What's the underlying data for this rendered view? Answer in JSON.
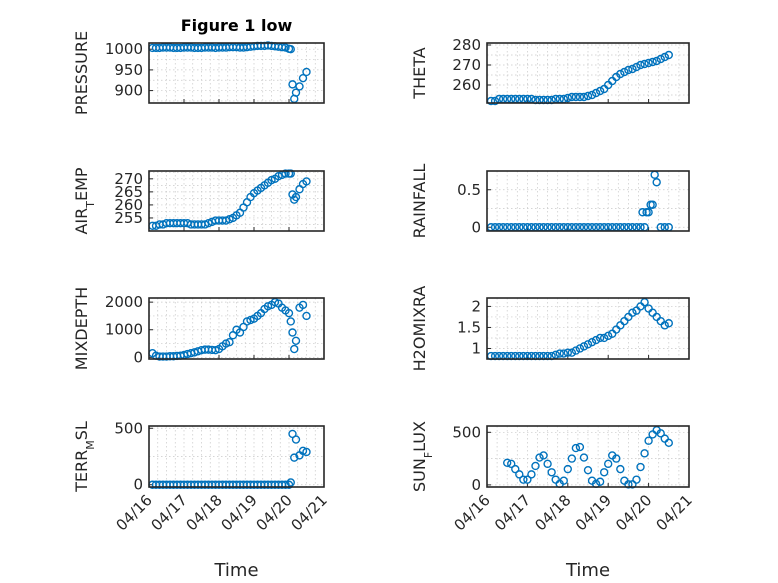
{
  "figure_title": "Figure 1 low",
  "xlabel": "Time",
  "x_tick_labels": [
    "04/16",
    "04/17",
    "04/18",
    "04/19",
    "04/20",
    "04/21"
  ],
  "marker_color": "#0072bd",
  "chart_data": [
    {
      "id": "pressure",
      "type": "scatter",
      "ylabel": "PRESSURE",
      "ylim": [
        870,
        1015
      ],
      "yticks": [
        900,
        950,
        1000
      ],
      "yticklabels": [
        "900",
        "950",
        "1000"
      ],
      "show_xticklabels": false,
      "x": [
        16.1,
        16.2,
        16.3,
        16.4,
        16.5,
        16.6,
        16.7,
        16.8,
        16.9,
        17.0,
        17.1,
        17.2,
        17.3,
        17.4,
        17.5,
        17.6,
        17.7,
        17.8,
        17.9,
        18.0,
        18.1,
        18.2,
        18.3,
        18.4,
        18.5,
        18.6,
        18.7,
        18.8,
        18.9,
        19.0,
        19.1,
        19.2,
        19.3,
        19.4,
        19.5,
        19.6,
        19.7,
        19.8,
        19.9,
        20.0,
        20.05,
        20.1,
        20.15,
        20.2,
        20.3,
        20.4,
        20.5
      ],
      "y": [
        1003,
        1003,
        1003,
        1004,
        1004,
        1004,
        1003,
        1003,
        1003,
        1004,
        1004,
        1004,
        1003,
        1003,
        1003,
        1004,
        1004,
        1004,
        1003,
        1004,
        1004,
        1004,
        1005,
        1005,
        1005,
        1004,
        1004,
        1005,
        1006,
        1007,
        1008,
        1008,
        1008,
        1009,
        1008,
        1007,
        1006,
        1005,
        1004,
        1001,
        1000,
        915,
        880,
        895,
        910,
        930,
        945
      ]
    },
    {
      "id": "theta",
      "type": "scatter",
      "ylabel": "THETA",
      "ylim": [
        251,
        281
      ],
      "yticks": [
        260,
        270,
        280
      ],
      "yticklabels": [
        "260",
        "270",
        "280"
      ],
      "show_xticklabels": false,
      "x": [
        16.1,
        16.2,
        16.3,
        16.4,
        16.5,
        16.6,
        16.7,
        16.8,
        16.9,
        17.0,
        17.1,
        17.2,
        17.3,
        17.4,
        17.5,
        17.6,
        17.7,
        17.8,
        17.9,
        18.0,
        18.1,
        18.2,
        18.3,
        18.4,
        18.5,
        18.6,
        18.7,
        18.8,
        18.9,
        19.0,
        19.1,
        19.2,
        19.3,
        19.4,
        19.5,
        19.6,
        19.7,
        19.8,
        19.9,
        20.0,
        20.1,
        20.2,
        20.3,
        20.4,
        20.5
      ],
      "y": [
        252,
        252,
        253,
        253,
        253,
        253,
        253,
        253,
        253,
        253,
        253,
        252.5,
        252.5,
        252.5,
        252.5,
        252.5,
        253,
        253,
        253,
        253.5,
        254,
        254,
        254,
        254,
        254.5,
        255,
        256,
        257,
        258,
        260,
        262,
        264,
        265.5,
        266.5,
        267.5,
        268,
        269,
        270,
        270.5,
        271,
        271.5,
        272,
        273,
        274,
        275
      ]
    },
    {
      "id": "air_temp",
      "type": "scatter",
      "ylabel": "AIR_TEMP",
      "ylim": [
        250,
        273
      ],
      "yticks": [
        255,
        260,
        265,
        270
      ],
      "yticklabels": [
        "255",
        "260",
        "265",
        "270"
      ],
      "show_xticklabels": false,
      "x": [
        16.1,
        16.2,
        16.3,
        16.4,
        16.5,
        16.6,
        16.7,
        16.8,
        16.9,
        17.0,
        17.1,
        17.2,
        17.3,
        17.4,
        17.5,
        17.6,
        17.7,
        17.8,
        17.9,
        18.0,
        18.1,
        18.2,
        18.3,
        18.4,
        18.5,
        18.6,
        18.7,
        18.8,
        18.9,
        19.0,
        19.1,
        19.2,
        19.3,
        19.4,
        19.5,
        19.6,
        19.7,
        19.8,
        19.9,
        20.0,
        20.05,
        20.1,
        20.15,
        20.2,
        20.3,
        20.4,
        20.5
      ],
      "y": [
        252,
        252,
        252.5,
        252.5,
        253,
        253,
        253,
        253,
        253,
        253,
        253,
        252.5,
        252.5,
        252.5,
        252.5,
        252.5,
        253,
        253.5,
        254,
        254,
        254,
        254,
        254.5,
        255,
        256,
        257,
        259,
        261,
        263,
        264.5,
        265.5,
        266.5,
        267.5,
        268.5,
        269.5,
        270,
        271,
        271.5,
        272,
        272,
        272,
        264,
        262,
        263,
        266,
        268,
        269
      ]
    },
    {
      "id": "rainfall",
      "type": "scatter",
      "ylabel": "RAINFALL",
      "ylim": [
        -0.05,
        0.75
      ],
      "yticks": [
        0,
        0.5
      ],
      "yticklabels": [
        "0",
        "0.5"
      ],
      "show_xticklabels": false,
      "x": [
        16.1,
        16.2,
        16.3,
        16.4,
        16.5,
        16.6,
        16.7,
        16.8,
        16.9,
        17.0,
        17.1,
        17.2,
        17.3,
        17.4,
        17.5,
        17.6,
        17.7,
        17.8,
        17.9,
        18.0,
        18.1,
        18.2,
        18.3,
        18.4,
        18.5,
        18.6,
        18.7,
        18.8,
        18.9,
        19.0,
        19.1,
        19.2,
        19.3,
        19.4,
        19.5,
        19.6,
        19.7,
        19.8,
        19.85,
        19.9,
        19.95,
        20.0,
        20.05,
        20.1,
        20.15,
        20.2,
        20.3,
        20.4,
        20.5
      ],
      "y": [
        0,
        0,
        0,
        0,
        0,
        0,
        0,
        0,
        0,
        0,
        0,
        0,
        0,
        0,
        0,
        0,
        0,
        0,
        0,
        0,
        0,
        0,
        0,
        0,
        0,
        0,
        0,
        0,
        0,
        0,
        0,
        0,
        0,
        0,
        0,
        0,
        0,
        0,
        0.2,
        0,
        0.2,
        0.2,
        0.3,
        0.3,
        0.7,
        0.6,
        0,
        0,
        0
      ]
    },
    {
      "id": "mixdepth",
      "type": "scatter",
      "ylabel": "MIXDEPTH",
      "ylim": [
        -60,
        2150
      ],
      "yticks": [
        0,
        1000,
        2000
      ],
      "yticklabels": [
        "0",
        "1000",
        "2000"
      ],
      "show_xticklabels": false,
      "x": [
        16.1,
        16.2,
        16.3,
        16.4,
        16.5,
        16.6,
        16.7,
        16.8,
        16.9,
        17.0,
        17.1,
        17.2,
        17.3,
        17.4,
        17.5,
        17.6,
        17.7,
        17.8,
        17.9,
        18.0,
        18.1,
        18.2,
        18.3,
        18.4,
        18.5,
        18.6,
        18.7,
        18.8,
        18.9,
        19.0,
        19.1,
        19.2,
        19.3,
        19.4,
        19.5,
        19.6,
        19.7,
        19.8,
        19.9,
        20.0,
        20.05,
        20.1,
        20.15,
        20.2,
        20.3,
        20.4,
        20.5
      ],
      "y": [
        150,
        60,
        30,
        30,
        30,
        40,
        40,
        50,
        60,
        80,
        120,
        150,
        180,
        220,
        260,
        280,
        280,
        270,
        260,
        300,
        400,
        500,
        550,
        800,
        1000,
        900,
        1100,
        1300,
        1350,
        1400,
        1500,
        1600,
        1750,
        1850,
        1900,
        2000,
        1950,
        1800,
        1700,
        1600,
        1300,
        900,
        300,
        600,
        1800,
        1900,
        1500
      ]
    },
    {
      "id": "h2omixra",
      "type": "scatter",
      "ylabel": "H2OMIXRA",
      "ylim": [
        0.75,
        2.2
      ],
      "yticks": [
        1,
        1.5,
        2
      ],
      "yticklabels": [
        "1",
        "1.5",
        "2"
      ],
      "show_xticklabels": false,
      "x": [
        16.1,
        16.2,
        16.3,
        16.4,
        16.5,
        16.6,
        16.7,
        16.8,
        16.9,
        17.0,
        17.1,
        17.2,
        17.3,
        17.4,
        17.5,
        17.6,
        17.7,
        17.8,
        17.9,
        18.0,
        18.1,
        18.2,
        18.3,
        18.4,
        18.5,
        18.6,
        18.7,
        18.8,
        18.9,
        19.0,
        19.1,
        19.2,
        19.3,
        19.4,
        19.5,
        19.6,
        19.7,
        19.8,
        19.9,
        20.0,
        20.1,
        20.2,
        20.3,
        20.4,
        20.5
      ],
      "y": [
        0.82,
        0.82,
        0.82,
        0.82,
        0.82,
        0.82,
        0.82,
        0.82,
        0.82,
        0.82,
        0.82,
        0.82,
        0.82,
        0.82,
        0.82,
        0.82,
        0.85,
        0.88,
        0.88,
        0.9,
        0.9,
        0.95,
        1.0,
        1.05,
        1.1,
        1.15,
        1.2,
        1.25,
        1.25,
        1.3,
        1.35,
        1.45,
        1.55,
        1.65,
        1.75,
        1.85,
        1.9,
        2.0,
        2.1,
        1.95,
        1.85,
        1.75,
        1.65,
        1.55,
        1.6
      ]
    },
    {
      "id": "terr_msl",
      "type": "scatter",
      "ylabel": "TERR_MSL",
      "ylim": [
        -20,
        520
      ],
      "yticks": [
        0,
        500
      ],
      "yticklabels": [
        "0",
        "500"
      ],
      "show_xticklabels": true,
      "x": [
        16.1,
        16.2,
        16.3,
        16.4,
        16.5,
        16.6,
        16.7,
        16.8,
        16.9,
        17.0,
        17.1,
        17.2,
        17.3,
        17.4,
        17.5,
        17.6,
        17.7,
        17.8,
        17.9,
        18.0,
        18.1,
        18.2,
        18.3,
        18.4,
        18.5,
        18.6,
        18.7,
        18.8,
        18.9,
        19.0,
        19.1,
        19.2,
        19.3,
        19.4,
        19.5,
        19.6,
        19.7,
        19.8,
        19.9,
        20.0,
        20.05,
        20.1,
        20.15,
        20.2,
        20.3,
        20.4,
        20.5
      ],
      "y": [
        0,
        0,
        0,
        0,
        0,
        0,
        0,
        0,
        0,
        0,
        0,
        0,
        0,
        0,
        0,
        0,
        0,
        0,
        0,
        0,
        0,
        0,
        0,
        0,
        0,
        0,
        0,
        0,
        0,
        0,
        0,
        0,
        0,
        0,
        0,
        0,
        0,
        0,
        0,
        0,
        20,
        450,
        240,
        400,
        260,
        300,
        290
      ]
    },
    {
      "id": "sun_flux",
      "type": "scatter",
      "ylabel": "SUN_FLUX",
      "ylim": [
        -20,
        560
      ],
      "yticks": [
        0,
        500
      ],
      "yticklabels": [
        "0",
        "500"
      ],
      "show_xticklabels": true,
      "x": [
        16.5,
        16.6,
        16.7,
        16.8,
        16.9,
        17.0,
        17.1,
        17.2,
        17.3,
        17.4,
        17.5,
        17.6,
        17.7,
        17.8,
        17.9,
        18.0,
        18.1,
        18.2,
        18.3,
        18.4,
        18.5,
        18.6,
        18.7,
        18.8,
        18.9,
        19.0,
        19.1,
        19.2,
        19.3,
        19.4,
        19.5,
        19.6,
        19.7,
        19.8,
        19.9,
        20.0,
        20.1,
        20.2,
        20.3,
        20.4,
        20.5
      ],
      "y": [
        210,
        200,
        150,
        100,
        50,
        50,
        100,
        180,
        260,
        280,
        200,
        120,
        50,
        10,
        40,
        150,
        250,
        350,
        360,
        260,
        140,
        40,
        10,
        30,
        120,
        200,
        280,
        250,
        150,
        40,
        5,
        5,
        50,
        170,
        300,
        420,
        480,
        520,
        490,
        440,
        400
      ]
    }
  ]
}
